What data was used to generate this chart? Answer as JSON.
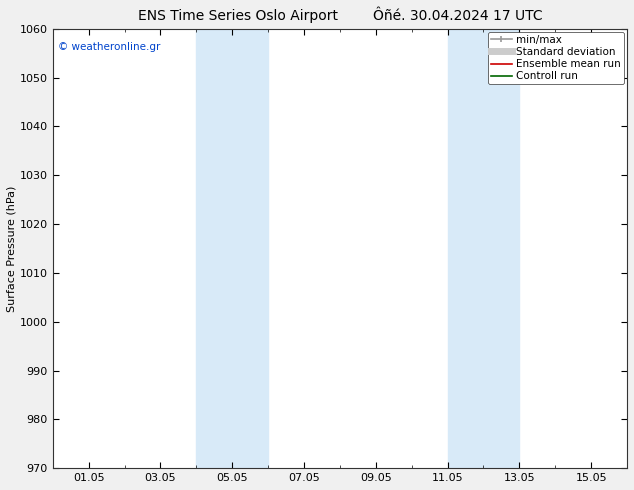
{
  "title_left": "ENS Time Series Oslo Airport",
  "title_right": "Ôñé. 30.04.2024 17 UTC",
  "ylabel": "Surface Pressure (hPa)",
  "ylim": [
    970,
    1060
  ],
  "yticks": [
    970,
    980,
    990,
    1000,
    1010,
    1020,
    1030,
    1040,
    1050,
    1060
  ],
  "x_labels": [
    "01.05",
    "03.05",
    "05.05",
    "07.05",
    "09.05",
    "11.05",
    "13.05",
    "15.05"
  ],
  "x_positions": [
    1,
    3,
    5,
    7,
    9,
    11,
    13,
    15
  ],
  "xlim": [
    0,
    16
  ],
  "shaded_bands": [
    {
      "x_start": 4,
      "x_end": 6,
      "color": "#d8eaf8"
    },
    {
      "x_start": 11,
      "x_end": 13,
      "color": "#d8eaf8"
    }
  ],
  "watermark": "© weatheronline.gr",
  "watermark_color": "#0044cc",
  "legend_items": [
    {
      "label": "min/max",
      "color": "#999999",
      "lw": 1.2
    },
    {
      "label": "Standard deviation",
      "color": "#cccccc",
      "lw": 5
    },
    {
      "label": "Ensemble mean run",
      "color": "#cc0000",
      "lw": 1.2
    },
    {
      "label": "Controll run",
      "color": "#006600",
      "lw": 1.2
    }
  ],
  "background_color": "#f0f0f0",
  "plot_bg_color": "#ffffff",
  "border_color": "#333333",
  "title_fontsize": 10,
  "axis_label_fontsize": 8,
  "tick_fontsize": 8,
  "legend_fontsize": 7.5
}
